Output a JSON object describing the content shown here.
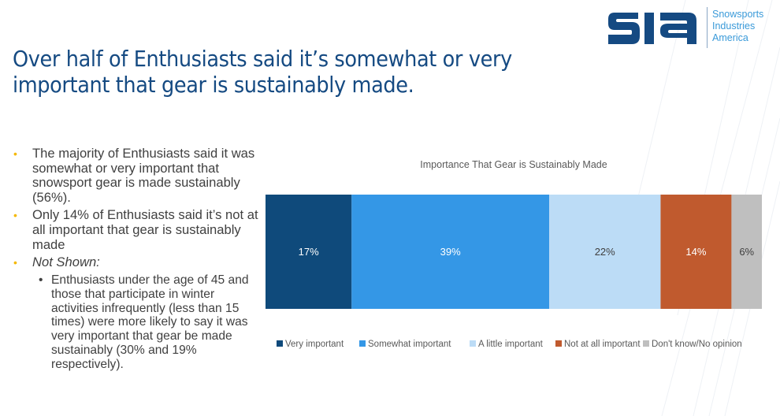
{
  "header": {
    "title": "Over half of Enthusiasts said it’s somewhat or very important that gear is sustainably made.",
    "logo": {
      "mark": "SIA",
      "text_lines": [
        "Snowsports",
        "Industries",
        "America"
      ]
    }
  },
  "bullets": [
    {
      "text": "The majority of Enthusiasts said it was somewhat or very important that snowsport gear is made sustainably (56%).",
      "italic": false
    },
    {
      "text": "Only 14% of Enthusiasts said it’s not at all important that gear is sustainably made",
      "italic": false
    },
    {
      "text": "Not Shown:",
      "italic": true,
      "sub": [
        "Enthusiasts under the age of 45 and those that participate in winter activities infrequently (less than 15 times) were more likely to say it was very important that gear be made sustainably (30% and 19% respectively)."
      ]
    }
  ],
  "bullet_glyph": "•",
  "colors": {
    "title": "#154a82",
    "bullet": "#f5b800",
    "logo_dark": "#154a82",
    "logo_light": "#3a9ad9"
  },
  "chart_data": {
    "type": "bar",
    "orientation": "horizontal",
    "stacked": true,
    "title": "Importance That Gear is Sustainably Made",
    "xlabel": "",
    "ylabel": "",
    "categories": [
      ""
    ],
    "unit": "%",
    "series": [
      {
        "name": "Very important",
        "values": [
          17
        ],
        "label": "17%",
        "color": "#0f4a7b",
        "label_color": "#ffffff"
      },
      {
        "name": "Somewhat important",
        "values": [
          39
        ],
        "label": "39%",
        "color": "#3497e6",
        "label_color": "#ffffff"
      },
      {
        "name": "A little important",
        "values": [
          22
        ],
        "label": "22%",
        "color": "#bcdcf6",
        "label_color": "#404040"
      },
      {
        "name": "Not at all important",
        "values": [
          14
        ],
        "label": "14%",
        "color": "#c05a2e",
        "label_color": "#ffffff"
      },
      {
        "name": "Don't know/No opinion",
        "values": [
          6
        ],
        "label": "6%",
        "color": "#bfbfbf",
        "label_color": "#404040"
      }
    ],
    "grid": false,
    "axes_visible": false,
    "legend_position": "bottom"
  }
}
